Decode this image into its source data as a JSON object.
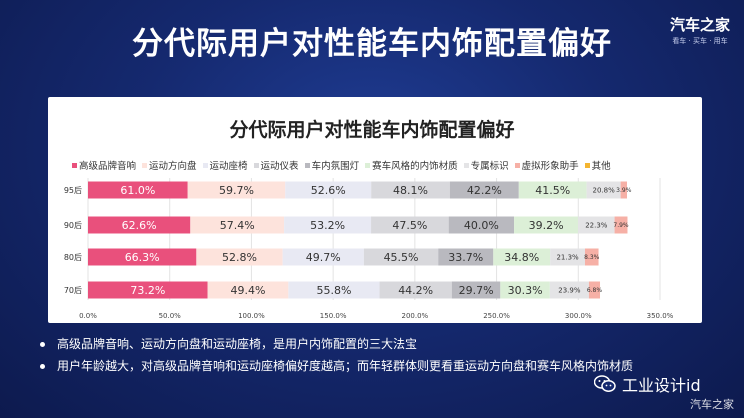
{
  "header": {
    "title": "分代际用户对性能车内饰配置偏好",
    "brand_name": "汽车之家",
    "brand_tag": "看车 · 买车 · 用车"
  },
  "chart_data": {
    "type": "bar",
    "orientation": "horizontal",
    "stacked": true,
    "title": "分代际用户对性能车内饰配置偏好",
    "categories": [
      "95后",
      "90后",
      "80后",
      "70后"
    ],
    "xlim": [
      0,
      350
    ],
    "x_ticks": [
      "0.0%",
      "50.0%",
      "100.0%",
      "150.0%",
      "200.0%",
      "250.0%",
      "300.0%",
      "350.0%"
    ],
    "legend_position": "top",
    "grid": true,
    "series": [
      {
        "name": "高级品牌音响",
        "color": "#e9507c",
        "label_color": "#ffffff",
        "values": [
          61.0,
          62.6,
          66.3,
          73.2
        ]
      },
      {
        "name": "运动方向盘",
        "color": "#fde3dc",
        "label_color": "#333333",
        "values": [
          59.7,
          57.4,
          52.8,
          49.4
        ]
      },
      {
        "name": "运动座椅",
        "color": "#e8e9f3",
        "label_color": "#333333",
        "values": [
          52.6,
          53.2,
          49.7,
          55.8
        ]
      },
      {
        "name": "运动仪表",
        "color": "#d8d8dc",
        "label_color": "#333333",
        "values": [
          48.1,
          47.5,
          45.5,
          44.2
        ]
      },
      {
        "name": "车内氛围灯",
        "color": "#b9b9bf",
        "label_color": "#333333",
        "values": [
          42.2,
          40.0,
          33.7,
          29.7
        ]
      },
      {
        "name": "赛车风格的内饰材质",
        "color": "#dcefd7",
        "label_color": "#333333",
        "values": [
          41.5,
          39.2,
          34.8,
          30.3
        ]
      },
      {
        "name": "专属标识",
        "color": "#e4e4e6",
        "label_color": "#333333",
        "values": [
          20.8,
          22.3,
          21.3,
          23.9
        ]
      },
      {
        "name": "虚拟形象助手",
        "color": "#f6b0a6",
        "label_color": "#333333",
        "values": [
          3.9,
          7.9,
          8.3,
          6.8
        ]
      },
      {
        "name": "其他",
        "color": "#f4b531",
        "label_color": "#333333",
        "values": [
          null,
          null,
          null,
          null
        ]
      }
    ]
  },
  "bullets": [
    "高级品牌音响、运动方向盘和运动座椅，是用户内饰配置的三大法宝",
    "用户年龄越大，对高级品牌音响和运动座椅偏好度越高；而年轻群体则更看重运动方向盘和赛车风格内饰材质"
  ],
  "footer": {
    "wechat_label": "工业设计id",
    "watermark": "汽车之家"
  }
}
